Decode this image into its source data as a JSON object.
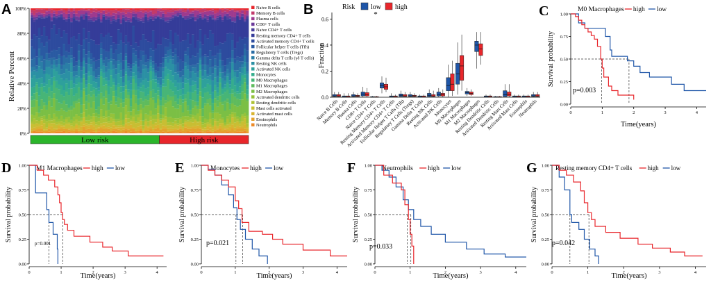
{
  "colors": {
    "high": "#e8262b",
    "low": "#1f56a8",
    "lowRisk": "#2bb52b",
    "highRisk": "#e8262b"
  },
  "panels": {
    "A": {
      "letter": "A",
      "ylabel": "Relative Percent",
      "yticks": [
        "0%",
        "20%",
        "40%",
        "60%",
        "80%",
        "100%"
      ],
      "group_low": "Low risk",
      "group_high": "High risk",
      "n_low": 52,
      "n_high": 36,
      "legend": [
        {
          "name": "Naive B cells",
          "color": "#e8262b"
        },
        {
          "name": "Memory B cells",
          "color": "#c23a6a"
        },
        {
          "name": "Plasma cells",
          "color": "#9e3a8e"
        },
        {
          "name": "CD8+ T cells",
          "color": "#6b3a9a"
        },
        {
          "name": "Naive CD4+ T cells",
          "color": "#4a3f9c"
        },
        {
          "name": "Resting memory CD4+ T cells",
          "color": "#353c99"
        },
        {
          "name": "Activated memory CD4+ T cells",
          "color": "#2d4b9e"
        },
        {
          "name": "Follicular helper T cells (Tfh)",
          "color": "#2a5aa2"
        },
        {
          "name": "Regulatory T cells (Tregs)",
          "color": "#2a6ca4"
        },
        {
          "name": "Gamma delta T cells (γδ T cells)",
          "color": "#2a7ea6"
        },
        {
          "name": "Resting NK cells",
          "color": "#2b90a4"
        },
        {
          "name": "Activated NK cells",
          "color": "#2ea09c"
        },
        {
          "name": "Monocytes",
          "color": "#35ad8c"
        },
        {
          "name": "M0 Macrophages",
          "color": "#47b577"
        },
        {
          "name": "M1 Macrophages",
          "color": "#5fbb5d"
        },
        {
          "name": "M2 Macrophages",
          "color": "#7bbf45"
        },
        {
          "name": "Activated dendritic cells",
          "color": "#95c23a"
        },
        {
          "name": "Resting dendritic cells",
          "color": "#aec235"
        },
        {
          "name": "Mast cells activated",
          "color": "#c8be33"
        },
        {
          "name": "Activated mast cells",
          "color": "#d8b430"
        },
        {
          "name": "Eosinophils",
          "color": "#e4a22c"
        },
        {
          "name": "Neutrophils",
          "color": "#ec8a28"
        }
      ],
      "mean_fractions": [
        0.01,
        0.02,
        0.03,
        0.02,
        0.01,
        0.15,
        0.12,
        0.06,
        0.05,
        0.04,
        0.06,
        0.05,
        0.05,
        0.07,
        0.05,
        0.08,
        0.04,
        0.03,
        0.03,
        0.02,
        0.02,
        0.01
      ]
    },
    "B": {
      "letter": "B",
      "legend_title": "Risk",
      "legend_low": "low",
      "legend_high": "high",
      "ylabel": "Fraction",
      "yticks": [
        "0.0",
        "0.2",
        "0.4",
        "0.6"
      ],
      "star": "*",
      "chart_type": "box",
      "categories": [
        "Naive B Cells",
        "Memory B Cells",
        "Plasma Cells",
        "CD8+ T Cells",
        "Naive CD4+ T Cells",
        "Resting Memory CD4+ T Cells",
        "Activated Memory CD4+ T Cells",
        "Follicular Helper T Cells (Tfh)",
        "Regulatory T Cells (Tregs)",
        "Gamma Delta T Cells",
        "Resting NK Cells",
        "Activated NK Cells",
        "Monocytes",
        "M0 Macrophages",
        "M1 Macrophages",
        "M2 Macrophages",
        "Resting Dendritic Cells",
        "Activated Dendritic Cells",
        "Resting Mast Cells",
        "Activated Mast Cells",
        "Eosinophils",
        "Neutrophils"
      ],
      "low": [
        [
          0,
          0.005,
          0.01,
          0.02,
          0.04
        ],
        [
          0,
          0,
          0.005,
          0.01,
          0.03
        ],
        [
          0,
          0.005,
          0.01,
          0.02,
          0.04
        ],
        [
          0,
          0.01,
          0.025,
          0.04,
          0.08
        ],
        [
          0,
          0,
          0,
          0.005,
          0.01
        ],
        [
          0.03,
          0.07,
          0.09,
          0.11,
          0.16
        ],
        [
          0,
          0,
          0.005,
          0.01,
          0.03
        ],
        [
          0,
          0.005,
          0.015,
          0.025,
          0.05
        ],
        [
          0,
          0.005,
          0.01,
          0.02,
          0.04
        ],
        [
          0,
          0,
          0.005,
          0.01,
          0.02
        ],
        [
          0,
          0.005,
          0.015,
          0.03,
          0.06
        ],
        [
          0,
          0.01,
          0.02,
          0.04,
          0.07
        ],
        [
          0,
          0.05,
          0.09,
          0.15,
          0.25
        ],
        [
          0.02,
          0.1,
          0.18,
          0.26,
          0.42
        ],
        [
          0.01,
          0.025,
          0.035,
          0.045,
          0.07
        ],
        [
          0.22,
          0.35,
          0.4,
          0.43,
          0.5
        ],
        [
          0,
          0,
          0.005,
          0.01,
          0.02
        ],
        [
          0,
          0,
          0,
          0.005,
          0.01
        ],
        [
          0,
          0.005,
          0.02,
          0.05,
          0.1
        ],
        [
          0,
          0,
          0.005,
          0.01,
          0.02
        ],
        [
          0,
          0,
          0.005,
          0.01,
          0.02
        ],
        [
          0,
          0.005,
          0.01,
          0.02,
          0.04
        ]
      ],
      "high": [
        [
          0,
          0.005,
          0.01,
          0.02,
          0.04
        ],
        [
          0,
          0,
          0.005,
          0.01,
          0.03
        ],
        [
          0,
          0.005,
          0.01,
          0.015,
          0.03
        ],
        [
          0,
          0.01,
          0.02,
          0.035,
          0.07
        ],
        [
          0,
          0,
          0,
          0.005,
          0.01
        ],
        [
          0.04,
          0.06,
          0.08,
          0.1,
          0.15
        ],
        [
          0,
          0,
          0.005,
          0.01,
          0.02
        ],
        [
          0,
          0.005,
          0.01,
          0.02,
          0.04
        ],
        [
          0,
          0.005,
          0.01,
          0.015,
          0.03
        ],
        [
          0,
          0,
          0.005,
          0.01,
          0.02
        ],
        [
          0,
          0.005,
          0.01,
          0.02,
          0.05
        ],
        [
          0,
          0.01,
          0.02,
          0.03,
          0.06
        ],
        [
          0.01,
          0.05,
          0.1,
          0.18,
          0.28
        ],
        [
          0.05,
          0.13,
          0.24,
          0.32,
          0.48
        ],
        [
          0.01,
          0.02,
          0.03,
          0.04,
          0.06
        ],
        [
          0.25,
          0.32,
          0.37,
          0.41,
          0.5
        ],
        [
          0,
          0,
          0.005,
          0.01,
          0.02
        ],
        [
          0,
          0,
          0,
          0.005,
          0.01
        ],
        [
          0,
          0.01,
          0.02,
          0.04,
          0.1
        ],
        [
          0,
          0,
          0.005,
          0.01,
          0.02
        ],
        [
          0,
          0,
          0.005,
          0.01,
          0.02
        ],
        [
          0,
          0.005,
          0.01,
          0.02,
          0.04
        ]
      ]
    },
    "C": {
      "letter": "C",
      "title": "M0 Macrophages",
      "legend_high": "high",
      "legend_low": "low",
      "p": "p=0.003",
      "ylabel": "Survival probability",
      "xlabel": "Time(years)",
      "xticks": [
        "0",
        "1",
        "2",
        "3",
        "4"
      ],
      "yticks": [
        "0.00",
        "0.25",
        "0.50",
        "0.75",
        "1.00"
      ],
      "high": [
        [
          0,
          1
        ],
        [
          0.15,
          0.97
        ],
        [
          0.25,
          0.93
        ],
        [
          0.35,
          0.88
        ],
        [
          0.45,
          0.84
        ],
        [
          0.55,
          0.8
        ],
        [
          0.65,
          0.76
        ],
        [
          0.75,
          0.72
        ],
        [
          0.85,
          0.64
        ],
        [
          0.95,
          0.5
        ],
        [
          1.0,
          0.4
        ],
        [
          1.05,
          0.3
        ],
        [
          1.2,
          0.2
        ],
        [
          1.3,
          0.15
        ],
        [
          1.5,
          0.1
        ],
        [
          2.0,
          0.05
        ]
      ],
      "low": [
        [
          0,
          1
        ],
        [
          0.25,
          0.9
        ],
        [
          0.45,
          0.84
        ],
        [
          1.1,
          0.75
        ],
        [
          1.25,
          0.6
        ],
        [
          1.3,
          0.53
        ],
        [
          1.8,
          0.48
        ],
        [
          2.0,
          0.42
        ],
        [
          2.2,
          0.35
        ],
        [
          2.5,
          0.3
        ],
        [
          3.2,
          0.22
        ],
        [
          3.6,
          0.15
        ],
        [
          4.3,
          0.15
        ]
      ],
      "median_high": 0.98,
      "median_low": 1.85
    },
    "D": {
      "letter": "D",
      "title": "M1 Macrophages",
      "legend_high": "high",
      "legend_low": "low",
      "p": "p=0.001",
      "ylabel": "Survival probability",
      "xlabel": "Time(years)",
      "xticks": [
        "0",
        "1",
        "2",
        "3",
        "4"
      ],
      "yticks": [
        "0.00",
        "0.25",
        "0.50",
        "0.75",
        "1.00"
      ],
      "high": [
        [
          0,
          1
        ],
        [
          0.25,
          0.95
        ],
        [
          0.45,
          0.9
        ],
        [
          0.6,
          0.85
        ],
        [
          0.8,
          0.78
        ],
        [
          0.9,
          0.7
        ],
        [
          0.95,
          0.62
        ],
        [
          1.0,
          0.52
        ],
        [
          1.05,
          0.45
        ],
        [
          1.1,
          0.4
        ],
        [
          1.2,
          0.34
        ],
        [
          1.4,
          0.28
        ],
        [
          1.9,
          0.22
        ],
        [
          2.3,
          0.17
        ],
        [
          2.6,
          0.13
        ],
        [
          3.1,
          0.08
        ],
        [
          4.2,
          0.08
        ]
      ],
      "low": [
        [
          0,
          1
        ],
        [
          0.2,
          0.72
        ],
        [
          0.55,
          0.55
        ],
        [
          0.62,
          0.42
        ],
        [
          0.75,
          0.3
        ],
        [
          0.88,
          0.15
        ],
        [
          0.9,
          0
        ]
      ],
      "median_high": 1.05,
      "median_low": 0.62
    },
    "E": {
      "letter": "E",
      "title": "Monocytes",
      "legend_high": "high",
      "legend_low": "low",
      "p": "p=0.021",
      "ylabel": "Survival probability",
      "xlabel": "Time(years)",
      "xticks": [
        "0",
        "1",
        "2",
        "3",
        "4"
      ],
      "yticks": [
        "0.00",
        "0.25",
        "0.50",
        "0.75",
        "1.00"
      ],
      "high": [
        [
          0,
          1
        ],
        [
          0.2,
          0.95
        ],
        [
          0.4,
          0.9
        ],
        [
          0.6,
          0.85
        ],
        [
          0.8,
          0.78
        ],
        [
          1.0,
          0.64
        ],
        [
          1.1,
          0.56
        ],
        [
          1.2,
          0.42
        ],
        [
          1.4,
          0.33
        ],
        [
          1.8,
          0.3
        ],
        [
          2.1,
          0.25
        ],
        [
          2.4,
          0.2
        ],
        [
          3.0,
          0.14
        ],
        [
          3.8,
          0.08
        ],
        [
          4.3,
          0.08
        ]
      ],
      "low": [
        [
          0,
          1
        ],
        [
          0.2,
          0.96
        ],
        [
          0.4,
          0.9
        ],
        [
          0.6,
          0.8
        ],
        [
          0.8,
          0.7
        ],
        [
          0.95,
          0.57
        ],
        [
          1.05,
          0.45
        ],
        [
          1.15,
          0.35
        ],
        [
          1.3,
          0.25
        ],
        [
          1.5,
          0.15
        ],
        [
          1.7,
          0.08
        ],
        [
          1.95,
          0
        ]
      ],
      "median_high": 1.22,
      "median_low": 1.02
    },
    "F": {
      "letter": "F",
      "title": "Neutrophils",
      "legend_high": "high",
      "legend_low": "low",
      "p": "p=0.033",
      "ylabel": "Survival probability",
      "xlabel": "Time(years)",
      "xticks": [
        "0",
        "1",
        "2",
        "3",
        "4"
      ],
      "yticks": [
        "0.00",
        "0.25",
        "0.50",
        "0.75",
        "1.00"
      ],
      "high": [
        [
          0,
          1
        ],
        [
          0.25,
          0.9
        ],
        [
          0.5,
          0.82
        ],
        [
          0.75,
          0.75
        ],
        [
          0.85,
          0.6
        ],
        [
          0.95,
          0.45
        ],
        [
          1.0,
          0.3
        ],
        [
          1.05,
          0.18
        ],
        [
          1.1,
          0
        ]
      ],
      "low": [
        [
          0,
          1
        ],
        [
          0.2,
          0.95
        ],
        [
          0.4,
          0.88
        ],
        [
          0.6,
          0.78
        ],
        [
          0.8,
          0.65
        ],
        [
          0.95,
          0.55
        ],
        [
          1.1,
          0.45
        ],
        [
          1.3,
          0.38
        ],
        [
          1.6,
          0.3
        ],
        [
          2.0,
          0.22
        ],
        [
          2.6,
          0.15
        ],
        [
          3.1,
          0.1
        ],
        [
          3.7,
          0.07
        ],
        [
          4.3,
          0.07
        ]
      ],
      "median_high": 0.92,
      "median_low": 1.02
    },
    "G": {
      "letter": "G",
      "title": "Resting memory CD4+ T cells",
      "legend_high": "high",
      "legend_low": "low",
      "p": "p=0.042",
      "ylabel": "Survival probability",
      "xlabel": "Time(years)",
      "xticks": [
        "0",
        "1",
        "2",
        "3",
        "4"
      ],
      "yticks": [
        "0.00",
        "0.25",
        "0.50",
        "0.75",
        "1.00"
      ],
      "high": [
        [
          0,
          1
        ],
        [
          0.2,
          0.95
        ],
        [
          0.4,
          0.9
        ],
        [
          0.6,
          0.83
        ],
        [
          0.8,
          0.74
        ],
        [
          0.9,
          0.62
        ],
        [
          1.0,
          0.52
        ],
        [
          1.1,
          0.45
        ],
        [
          1.2,
          0.38
        ],
        [
          1.5,
          0.32
        ],
        [
          1.9,
          0.26
        ],
        [
          2.4,
          0.2
        ],
        [
          2.8,
          0.16
        ],
        [
          3.3,
          0.12
        ],
        [
          3.7,
          0.08
        ],
        [
          4.2,
          0.08
        ]
      ],
      "low": [
        [
          0,
          1
        ],
        [
          0.2,
          0.88
        ],
        [
          0.35,
          0.75
        ],
        [
          0.5,
          0.5
        ],
        [
          0.55,
          0.42
        ],
        [
          0.75,
          0.35
        ],
        [
          0.9,
          0.25
        ],
        [
          1.05,
          0.15
        ],
        [
          1.2,
          0.08
        ],
        [
          1.3,
          0
        ]
      ],
      "median_high": 1.03,
      "median_low": 0.5
    }
  }
}
